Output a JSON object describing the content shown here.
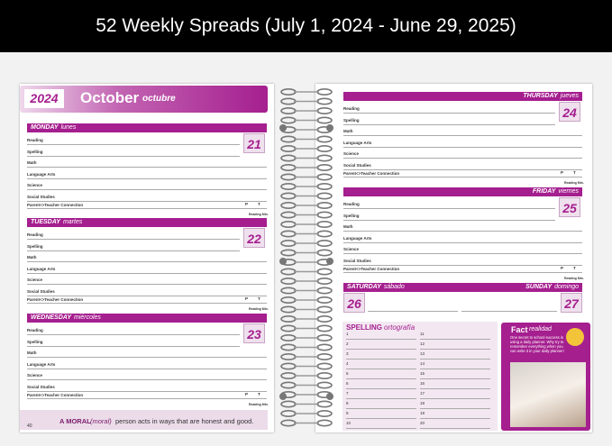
{
  "banner": {
    "title": "52 Weekly Spreads (July 1, 2024 - June 29, 2025)"
  },
  "left_page": {
    "year": "2024",
    "month": "October",
    "month_es": "octubre",
    "page_number": "40",
    "footer": {
      "word": "A MORAL",
      "word_es": "(moral)",
      "text": "person acts in ways that are honest and good."
    }
  },
  "right_page": {
    "page_number": "41"
  },
  "subjects": [
    "Reading",
    "Spelling",
    "Math",
    "Language Arts",
    "Science",
    "Social Studies"
  ],
  "parent_line": "Parent<>Teacher Connection",
  "parent_marks": [
    "P",
    "T"
  ],
  "reading_min": "Reading Min.",
  "days": [
    {
      "name": "MONDAY",
      "name_es": "lunes",
      "date": "21"
    },
    {
      "name": "TUESDAY",
      "name_es": "martes",
      "date": "22"
    },
    {
      "name": "WEDNESDAY",
      "name_es": "miércoles",
      "date": "23"
    },
    {
      "name": "THURSDAY",
      "name_es": "jueves",
      "date": "24"
    },
    {
      "name": "FRIDAY",
      "name_es": "viernes",
      "date": "25"
    },
    {
      "name": "SATURDAY",
      "name_es": "sábado",
      "date": "26"
    },
    {
      "name": "SUNDAY",
      "name_es": "domingo",
      "date": "27"
    }
  ],
  "spelling": {
    "title": "SPELLING",
    "title_es": "ortografía",
    "numbers": [
      1,
      2,
      3,
      4,
      5,
      6,
      7,
      8,
      9,
      10,
      11,
      12,
      13,
      14,
      15,
      16,
      17,
      18,
      19,
      20
    ]
  },
  "fact": {
    "title": "Fact",
    "title_es": "realidad",
    "text": "One secret to school success is using a daily planner. Why try to remember everything when you can write it in your daily planner!"
  }
}
